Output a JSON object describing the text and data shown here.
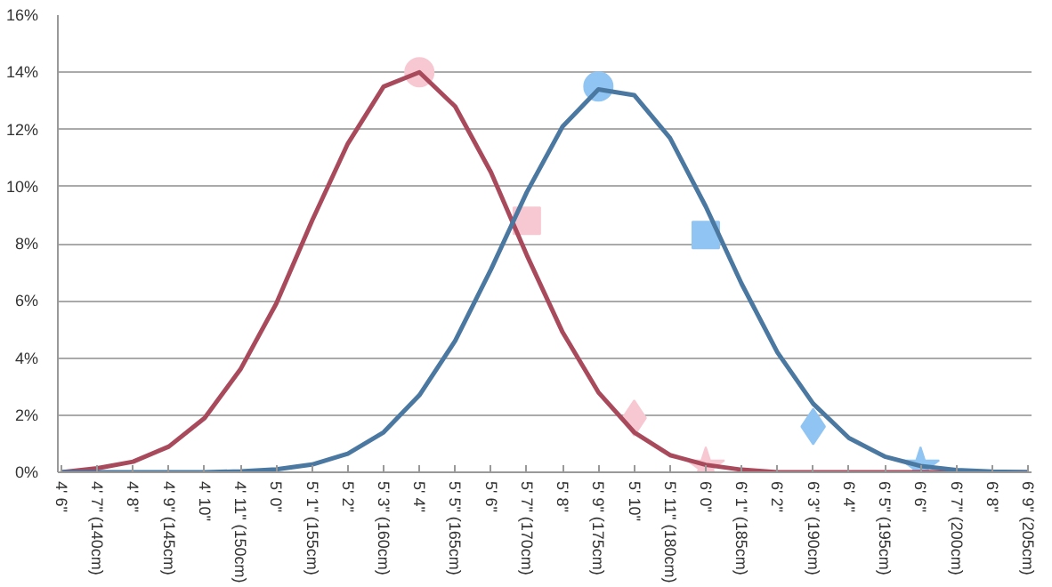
{
  "chart_data": {
    "type": "line",
    "categories": [
      "4' 6\"",
      "4' 7\" (140cm)",
      "4' 8\"",
      "4' 9\" (145cm)",
      "4' 10\"",
      "4' 11\" (150cm)",
      "5' 0\"",
      "5' 1\" (155cm)",
      "5' 2\"",
      "5' 3\" (160cm)",
      "5' 4\"",
      "5' 5\" (165cm)",
      "5' 6\"",
      "5' 7\" (170cm)",
      "5' 8\"",
      "5' 9\" (175cm)",
      "5' 10\"",
      "5' 11\" (180cm)",
      "6' 0\"",
      "6' 1\" (185cm)",
      "6' 2\"",
      "6' 3\" (190cm)",
      "6' 4\"",
      "6' 5\" (195cm)",
      "6' 6\"",
      "6' 7\" (200cm)",
      "6' 8\"",
      "6' 9\" (205cm)"
    ],
    "series": [
      {
        "color": "#a84a5c",
        "values": [
          0.0,
          0.14,
          0.37,
          0.9,
          1.9,
          3.6,
          5.9,
          8.8,
          11.5,
          13.5,
          14.0,
          12.8,
          10.5,
          7.6,
          4.9,
          2.8,
          1.4,
          0.6,
          0.26,
          0.09,
          0.0,
          0.0,
          0.0,
          0.0,
          0.0,
          0.0,
          0.0,
          0.0
        ]
      },
      {
        "color": "#4a78a0",
        "values": [
          0.0,
          0.0,
          0.0,
          0.0,
          0.0,
          0.03,
          0.1,
          0.27,
          0.65,
          1.4,
          2.7,
          4.6,
          7.1,
          9.8,
          12.1,
          13.4,
          13.2,
          11.7,
          9.3,
          6.6,
          4.2,
          2.4,
          1.2,
          0.55,
          0.22,
          0.08,
          0.02,
          0.0
        ]
      },
      {
        "type": "scatter",
        "marker": "circle",
        "color": "#f8c8d2",
        "x": [
          "5' 4\""
        ],
        "values": [
          14.0
        ]
      },
      {
        "type": "scatter",
        "marker": "square",
        "color": "#f8c8d2",
        "x": [
          "5' 7\" (170cm)"
        ],
        "values": [
          8.8
        ]
      },
      {
        "type": "scatter",
        "marker": "diamond",
        "color": "#f8c8d2",
        "x": [
          "5' 10\""
        ],
        "values": [
          1.9
        ]
      },
      {
        "type": "scatter",
        "marker": "star",
        "color": "#f8c8d2",
        "x": [
          "6' 0\""
        ],
        "values": [
          0.2
        ]
      },
      {
        "type": "scatter",
        "marker": "circle",
        "color": "#90c4f2",
        "x": [
          "5' 9\" (175cm)"
        ],
        "values": [
          13.5
        ]
      },
      {
        "type": "scatter",
        "marker": "square",
        "color": "#90c4f2",
        "x": [
          "6' 0\""
        ],
        "values": [
          8.3
        ]
      },
      {
        "type": "scatter",
        "marker": "diamond",
        "color": "#90c4f2",
        "x": [
          "6' 3\" (190cm)"
        ],
        "values": [
          1.6
        ]
      },
      {
        "type": "scatter",
        "marker": "star",
        "color": "#90c4f2",
        "x": [
          "6' 6\""
        ],
        "values": [
          0.2
        ]
      }
    ],
    "ylim": [
      0,
      16
    ],
    "yticks": [
      {
        "value": 0,
        "label": "0%"
      },
      {
        "value": 2,
        "label": "2%"
      },
      {
        "value": 4,
        "label": "4%"
      },
      {
        "value": 6,
        "label": "6%"
      },
      {
        "value": 8,
        "label": "8%"
      },
      {
        "value": 10,
        "label": "10%"
      },
      {
        "value": 12,
        "label": "12%"
      },
      {
        "value": 14,
        "label": "14%"
      },
      {
        "value": 16,
        "label": "16%"
      }
    ],
    "grid": "y",
    "line_style": "solid"
  }
}
